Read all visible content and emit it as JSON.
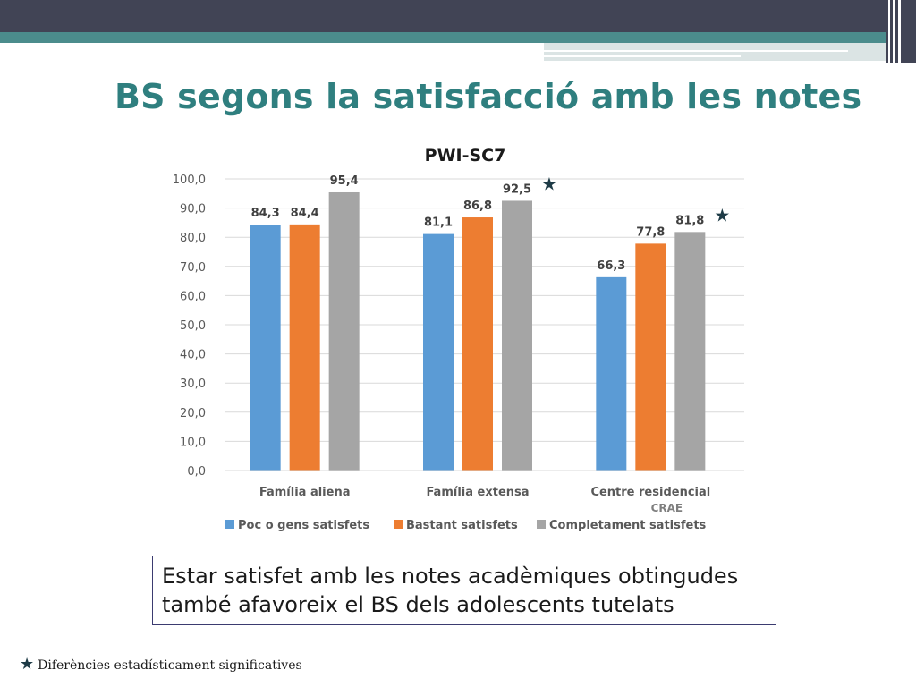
{
  "slide": {
    "title": "BS segons la satisfacció amb les notes",
    "note_line1": "Estar satisfet amb les notes acadèmiques obtingudes",
    "note_line2": "també afavoreix el BS dels adolescents tutelats",
    "footnote": "Diferències estadísticament significatives",
    "star_symbol": "★"
  },
  "colors": {
    "accent": "#2f7f7f",
    "topbar": "#414455",
    "star": "#1e3b46",
    "series": [
      "#5b9bd5",
      "#ed7d31",
      "#a5a5a5"
    ]
  },
  "chart_data": {
    "type": "bar",
    "title": "PWI-SC7",
    "categories": [
      "Família aliena",
      "Família extensa",
      "Centre residencial"
    ],
    "category_sublabels": [
      "",
      "",
      "CRAE"
    ],
    "series": [
      {
        "name": "Poc o gens satisfets",
        "values": [
          84.3,
          81.1,
          66.3
        ]
      },
      {
        "name": "Bastant satisfets",
        "values": [
          84.4,
          86.8,
          77.8
        ]
      },
      {
        "name": "Completament satisfets",
        "values": [
          95.4,
          92.5,
          81.8
        ]
      }
    ],
    "data_labels": [
      [
        "84,3",
        "81,1",
        "66,3"
      ],
      [
        "84,4",
        "86,8",
        "77,8"
      ],
      [
        "95,4",
        "92,5",
        "81,8"
      ]
    ],
    "significant": [
      false,
      true,
      true
    ],
    "yticks": [
      0,
      10,
      20,
      30,
      40,
      50,
      60,
      70,
      80,
      90,
      100
    ],
    "ytick_labels": [
      "0,0",
      "10,0",
      "20,0",
      "30,0",
      "40,0",
      "50,0",
      "60,0",
      "70,0",
      "80,0",
      "90,0",
      "100,0"
    ],
    "ylim": [
      0,
      100
    ],
    "grid": true,
    "legend": "bottom"
  }
}
